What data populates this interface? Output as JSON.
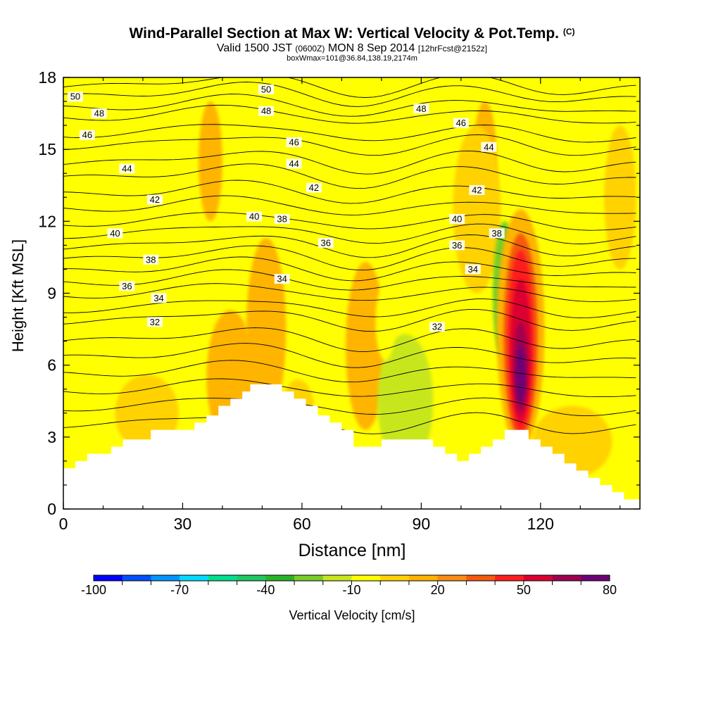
{
  "title": {
    "main": "Wind-Parallel Section at Max W: Vertical Velocity & Pot.Temp.",
    "copyright": "(C)",
    "valid_prefix": "Valid 1500 JST",
    "zulu": "(0600Z)",
    "date": "MON 8 Sep 2014",
    "forecast": "[12hrFcst@2152z]",
    "box": "boxWmax=101@36.84,138.19,2174m"
  },
  "chart_data": {
    "type": "heatmap",
    "xlabel": "Distance [nm]",
    "ylabel": "Height [Kft MSL]",
    "xlim": [
      0,
      145
    ],
    "ylim": [
      0,
      18
    ],
    "x_ticks": [
      0,
      30,
      60,
      90,
      120
    ],
    "y_ticks": [
      0,
      3,
      6,
      9,
      12,
      15,
      18
    ],
    "colorbar": {
      "label": "Vertical Velocity [cm/s]",
      "ticks": [
        -100,
        -70,
        -40,
        -10,
        20,
        50,
        80
      ],
      "colors": [
        "#0000ff",
        "#0050ff",
        "#0096ff",
        "#00dcff",
        "#00e08c",
        "#1ec864",
        "#28b428",
        "#78cd28",
        "#c8e61e",
        "#ffff00",
        "#ffd200",
        "#ffb400",
        "#fa8c14",
        "#f55a0f",
        "#ff1e1e",
        "#dc0032",
        "#a00050",
        "#6e0078"
      ]
    },
    "background_w": "-10 to 0",
    "terrain": {
      "x": [
        0,
        3,
        6,
        12,
        15,
        18,
        22,
        28,
        33,
        36,
        39,
        42,
        45,
        47,
        52,
        55,
        58,
        61,
        64,
        67,
        70,
        73,
        76,
        80,
        85,
        90,
        93,
        96,
        99,
        102,
        105,
        108,
        111,
        114,
        117,
        120,
        123,
        126,
        129,
        132,
        135,
        138,
        141,
        145
      ],
      "height_kft": [
        1.7,
        2.0,
        2.3,
        2.6,
        2.9,
        2.9,
        3.3,
        3.3,
        3.6,
        3.9,
        4.3,
        4.6,
        4.9,
        5.2,
        5.2,
        4.9,
        4.6,
        4.3,
        3.9,
        3.6,
        3.3,
        2.6,
        2.6,
        2.9,
        2.9,
        2.9,
        2.6,
        2.3,
        2.0,
        2.3,
        2.6,
        2.9,
        3.3,
        3.3,
        2.9,
        2.6,
        2.3,
        1.9,
        1.6,
        1.3,
        1.0,
        0.7,
        0.4,
        0.4
      ]
    },
    "w_features": [
      {
        "x": 51,
        "y": 8.0,
        "rx": 3,
        "ry": 2.2,
        "w": 25
      },
      {
        "x": 51,
        "y": 7.5,
        "rx": 5,
        "ry": 3.8,
        "w": 15
      },
      {
        "x": 76,
        "y": 6.6,
        "rx": 3,
        "ry": 2.0,
        "w": 25
      },
      {
        "x": 76,
        "y": 6.8,
        "rx": 5,
        "ry": 3.5,
        "w": 15
      },
      {
        "x": 37,
        "y": 14.5,
        "rx": 3,
        "ry": 2.5,
        "w": 15
      },
      {
        "x": 106,
        "y": 14.5,
        "rx": 3,
        "ry": 2.5,
        "w": 15
      },
      {
        "x": 104,
        "y": 12.5,
        "rx": 6,
        "ry": 3.5,
        "w": 5
      },
      {
        "x": 42,
        "y": 5.5,
        "rx": 6,
        "ry": 2.8,
        "w": 15
      },
      {
        "x": 21,
        "y": 4.0,
        "rx": 8,
        "ry": 1.6,
        "w": 5
      },
      {
        "x": 59,
        "y": 4.2,
        "rx": 4,
        "ry": 1.2,
        "w": 5
      },
      {
        "x": 128,
        "y": 2.8,
        "rx": 10,
        "ry": 1.5,
        "w": 5
      },
      {
        "x": 140,
        "y": 13.0,
        "rx": 4,
        "ry": 3.0,
        "w": 5
      },
      {
        "x": 50,
        "y": 16.8,
        "rx": 3,
        "ry": 1.8,
        "w": -25
      },
      {
        "x": 51,
        "y": 17.0,
        "rx": 6,
        "ry": 3.0,
        "w": -10
      },
      {
        "x": 66,
        "y": 14.5,
        "rx": 2.5,
        "ry": 2.5,
        "w": -10
      },
      {
        "x": 111,
        "y": 9.0,
        "rx": 3,
        "ry": 3.0,
        "w": -25
      },
      {
        "x": 85,
        "y": 3.8,
        "rx": 4,
        "ry": 1.3,
        "w": -40
      },
      {
        "x": 86,
        "y": 4.5,
        "rx": 7,
        "ry": 2.8,
        "w": -20
      },
      {
        "x": 81,
        "y": 7.8,
        "rx": 2.5,
        "ry": 1.6,
        "w": -10
      },
      {
        "x": 67,
        "y": 7.4,
        "rx": 2.5,
        "ry": 1.8,
        "w": -10
      },
      {
        "x": 24,
        "y": 8.8,
        "rx": 3,
        "ry": 1.5,
        "w": -10
      },
      {
        "x": 115,
        "y": 7.5,
        "rx": 6,
        "ry": 5.0,
        "w": 15
      },
      {
        "x": 115,
        "y": 7.2,
        "rx": 4.3,
        "ry": 4.3,
        "w": 30
      },
      {
        "x": 115,
        "y": 7.0,
        "rx": 3.3,
        "ry": 3.8,
        "w": 45
      },
      {
        "x": 115,
        "y": 6.6,
        "rx": 2.6,
        "ry": 3.0,
        "w": 55
      },
      {
        "x": 115,
        "y": 5.9,
        "rx": 1.8,
        "ry": 1.9,
        "w": 65
      },
      {
        "x": 115,
        "y": 5.6,
        "rx": 1.2,
        "ry": 1.2,
        "w": 75
      }
    ],
    "theta_contours": {
      "unit": "C",
      "levels": [
        {
          "t": 50,
          "y": 17.6
        },
        {
          "t": 49,
          "y": 17.2
        },
        {
          "t": 48,
          "y": 16.7
        },
        {
          "t": 47,
          "y": 16.3
        },
        {
          "t": 46,
          "y": 15.6
        },
        {
          "t": 45,
          "y": 15.1
        },
        {
          "t": 44,
          "y": 14.4
        },
        {
          "t": 43,
          "y": 13.8
        },
        {
          "t": 42,
          "y": 13.1
        },
        {
          "t": 41,
          "y": 12.5
        },
        {
          "t": 40,
          "y": 11.9
        },
        {
          "t": 39,
          "y": 11.4
        },
        {
          "t": 38,
          "y": 10.9
        },
        {
          "t": 37,
          "y": 10.4
        },
        {
          "t": 36,
          "y": 9.9
        },
        {
          "t": 35,
          "y": 9.4
        },
        {
          "t": 34,
          "y": 8.9
        },
        {
          "t": 33,
          "y": 8.3
        },
        {
          "t": 32,
          "y": 7.8
        },
        {
          "t": 31,
          "y": 7.0
        },
        {
          "t": 30,
          "y": 6.3
        },
        {
          "t": 29,
          "y": 5.6
        },
        {
          "t": 28,
          "y": 4.9
        },
        {
          "t": 27,
          "y": 4.2
        },
        {
          "t": 26,
          "y": 3.5
        }
      ],
      "labels": [
        {
          "text": "50",
          "x": 3,
          "y": 17.2
        },
        {
          "text": "48",
          "x": 9,
          "y": 16.5
        },
        {
          "text": "46",
          "x": 6,
          "y": 15.6
        },
        {
          "text": "44",
          "x": 16,
          "y": 14.2
        },
        {
          "text": "42",
          "x": 23,
          "y": 12.9
        },
        {
          "text": "40",
          "x": 13,
          "y": 11.5
        },
        {
          "text": "38",
          "x": 22,
          "y": 10.4
        },
        {
          "text": "36",
          "x": 16,
          "y": 9.3
        },
        {
          "text": "34",
          "x": 24,
          "y": 8.8
        },
        {
          "text": "32",
          "x": 23,
          "y": 7.8
        },
        {
          "text": "50",
          "x": 51,
          "y": 17.5
        },
        {
          "text": "48",
          "x": 51,
          "y": 16.6
        },
        {
          "text": "46",
          "x": 58,
          "y": 15.3
        },
        {
          "text": "44",
          "x": 58,
          "y": 14.4
        },
        {
          "text": "42",
          "x": 63,
          "y": 13.4
        },
        {
          "text": "40",
          "x": 48,
          "y": 12.2
        },
        {
          "text": "38",
          "x": 55,
          "y": 12.1
        },
        {
          "text": "36",
          "x": 66,
          "y": 11.1
        },
        {
          "text": "34",
          "x": 55,
          "y": 9.6
        },
        {
          "text": "32",
          "x": 94,
          "y": 7.6
        },
        {
          "text": "48",
          "x": 90,
          "y": 16.7
        },
        {
          "text": "46",
          "x": 100,
          "y": 16.1
        },
        {
          "text": "44",
          "x": 107,
          "y": 15.1
        },
        {
          "text": "42",
          "x": 104,
          "y": 13.3
        },
        {
          "text": "40",
          "x": 99,
          "y": 12.1
        },
        {
          "text": "38",
          "x": 109,
          "y": 11.5
        },
        {
          "text": "36",
          "x": 99,
          "y": 11.0
        },
        {
          "text": "34",
          "x": 103,
          "y": 10.0
        }
      ]
    }
  }
}
